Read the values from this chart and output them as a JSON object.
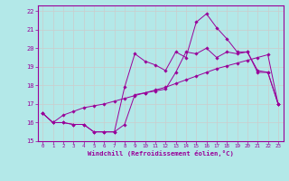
{
  "xlabel": "Windchill (Refroidissement éolien,°C)",
  "background_color": "#b3e8e8",
  "grid_color": "#cccccc",
  "line_color": "#990099",
  "xlim": [
    -0.5,
    23.5
  ],
  "ylim": [
    15.0,
    22.3
  ],
  "xticks": [
    0,
    1,
    2,
    3,
    4,
    5,
    6,
    7,
    8,
    9,
    10,
    11,
    12,
    13,
    14,
    15,
    16,
    17,
    18,
    19,
    20,
    21,
    22,
    23
  ],
  "yticks": [
    15,
    16,
    17,
    18,
    19,
    20,
    21,
    22
  ],
  "series1_x": [
    0,
    1,
    2,
    3,
    4,
    5,
    6,
    7,
    8,
    9,
    10,
    11,
    12,
    13,
    14,
    15,
    16,
    17,
    18,
    19,
    20,
    21,
    22,
    23
  ],
  "series1_y": [
    16.5,
    16.0,
    16.0,
    15.9,
    15.9,
    15.5,
    15.5,
    15.5,
    15.9,
    17.5,
    17.6,
    17.7,
    17.8,
    18.7,
    19.8,
    19.7,
    20.0,
    19.5,
    19.8,
    19.7,
    19.8,
    18.8,
    18.7,
    17.0
  ],
  "series2_x": [
    0,
    1,
    2,
    3,
    4,
    5,
    6,
    7,
    8,
    9,
    10,
    11,
    12,
    13,
    14,
    15,
    16,
    17,
    18,
    19,
    20,
    21,
    22,
    23
  ],
  "series2_y": [
    16.5,
    16.0,
    16.0,
    15.9,
    15.9,
    15.5,
    15.5,
    15.5,
    17.9,
    19.7,
    19.3,
    19.1,
    18.8,
    19.8,
    19.5,
    21.4,
    21.85,
    21.1,
    20.5,
    19.8,
    19.8,
    18.7,
    18.7,
    17.0
  ],
  "series3_x": [
    0,
    1,
    2,
    3,
    4,
    5,
    6,
    7,
    8,
    9,
    10,
    11,
    12,
    13,
    14,
    15,
    16,
    17,
    18,
    19,
    20,
    21,
    22,
    23
  ],
  "series3_y": [
    16.5,
    16.0,
    16.4,
    16.6,
    16.8,
    16.9,
    17.0,
    17.15,
    17.3,
    17.45,
    17.6,
    17.75,
    17.9,
    18.1,
    18.3,
    18.5,
    18.7,
    18.9,
    19.05,
    19.2,
    19.35,
    19.5,
    19.65,
    17.0
  ]
}
